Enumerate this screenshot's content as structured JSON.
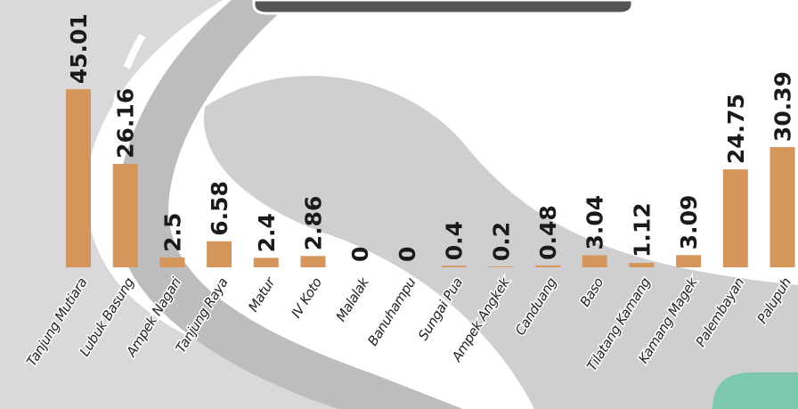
{
  "chart_data": {
    "type": "bar",
    "categories": [
      "Tanjung Mutiara",
      "Lubuk Basung",
      "Ampek Nagari",
      "Tanjung Raya",
      "Matur",
      "IV Koto",
      "Malalak",
      "Banuhampu",
      "Sungai Pua",
      "Ampek Angkek",
      "Canduang",
      "Baso",
      "Tilatang Kamang",
      "Kamang Magek",
      "Palembayan",
      "Palupuh"
    ],
    "values": [
      45.01,
      26.16,
      2.5,
      6.58,
      2.4,
      2.86,
      0,
      0,
      0.4,
      0.2,
      0.48,
      3.04,
      1.12,
      3.09,
      24.75,
      30.39
    ],
    "color": "#d4965a"
  }
}
